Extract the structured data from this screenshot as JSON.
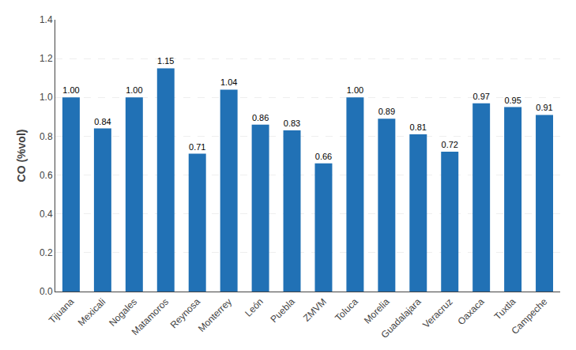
{
  "chart_data": {
    "type": "bar",
    "ylabel": "CO (%vol)",
    "categories": [
      "Tijuana",
      "Mexicali",
      "Nogales",
      "Matamoros",
      "Reynosa",
      "Monterrey",
      "León",
      "Puebla",
      "ZMVM",
      "Toluca",
      "Morelia",
      "Guadalajara",
      "Veracruz",
      "Oaxaca",
      "Tuxtla",
      "Campeche"
    ],
    "values": [
      1.0,
      0.84,
      1.0,
      1.15,
      0.71,
      1.04,
      0.86,
      0.83,
      0.66,
      1.0,
      0.89,
      0.81,
      0.72,
      0.97,
      0.95,
      0.91
    ],
    "value_labels": [
      "1.00",
      "0.84",
      "1.00",
      "1.15",
      "0.71",
      "1.04",
      "0.86",
      "0.83",
      "0.66",
      "1.00",
      "0.89",
      "0.81",
      "0.72",
      "0.97",
      "0.95",
      "0.91"
    ],
    "color": "#2171B5",
    "ylim": [
      0.0,
      1.4
    ],
    "yticks": [
      {
        "value": 0.0,
        "label": "0.0"
      },
      0.2,
      0.4,
      0.6,
      0.8,
      {
        "value": 1.0,
        "label": "1.0"
      },
      1.2,
      1.4
    ],
    "grid": true,
    "data_labels": true
  }
}
